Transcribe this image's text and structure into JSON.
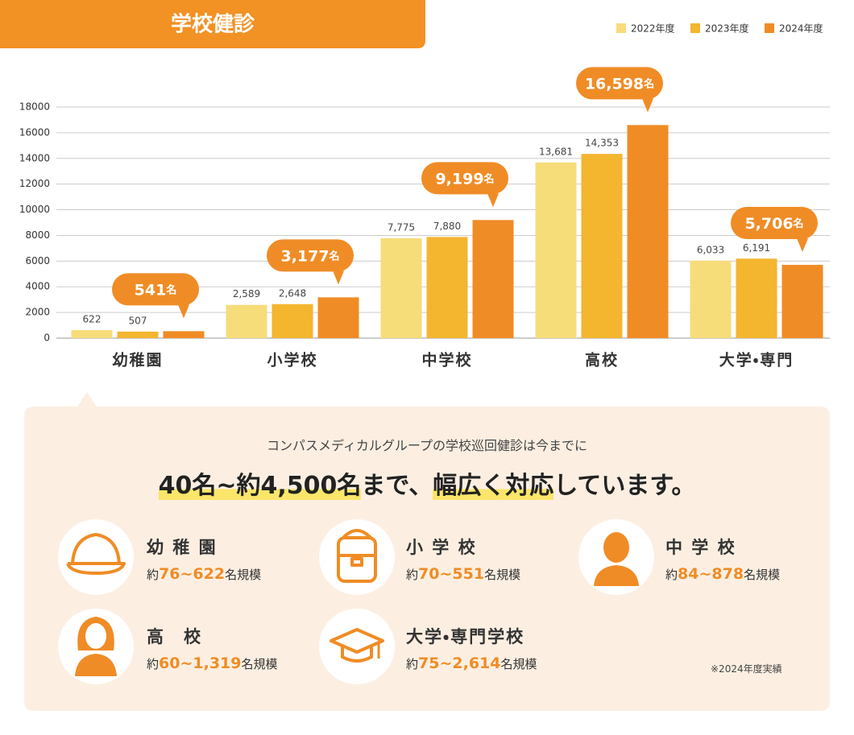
{
  "chart_data": {
    "type": "bar",
    "title": "学校健診",
    "categories": [
      "幼稚園",
      "小学校",
      "中学校",
      "高校",
      "大学・専門"
    ],
    "series": [
      {
        "name": "2022年度",
        "color": "#f7dc7a",
        "values": [
          622,
          2589,
          7775,
          13681,
          6033
        ],
        "value_labels": [
          "622",
          "2,589",
          "7,775",
          "13,681",
          "6,033"
        ]
      },
      {
        "name": "2023年度",
        "color": "#f4b52f",
        "values": [
          507,
          2648,
          7880,
          14353,
          6191
        ],
        "value_labels": [
          "507",
          "2,648",
          "7,880",
          "14,353",
          "6,191"
        ]
      },
      {
        "name": "2024年度",
        "color": "#f08c25",
        "values": [
          541,
          3177,
          9199,
          16598,
          5706
        ],
        "value_labels": [
          "541",
          "3,177",
          "9,199",
          "16,598",
          "5,706"
        ],
        "callout": true
      }
    ],
    "value_unit": "名",
    "ylim": [
      0,
      18000
    ],
    "yticks": [
      0,
      2000,
      4000,
      6000,
      8000,
      10000,
      12000,
      14000,
      16000,
      18000
    ],
    "grid": true,
    "legend": "top-right"
  },
  "info": {
    "lead": "コンパスメディカルグループの学校巡回健診は今までに",
    "headline": [
      {
        "text": "40名~約4,500名",
        "highlight": true
      },
      {
        "text": "まで、",
        "highlight": false
      },
      {
        "text": "幅広く対応",
        "highlight": true
      },
      {
        "text": "しています。",
        "highlight": false
      }
    ],
    "items": [
      {
        "name": "幼 稚 園",
        "pre": "約",
        "min": "76",
        "sep": "~",
        "max": "622",
        "post": "名規模"
      },
      {
        "name": "小 学 校",
        "pre": "約",
        "min": "70",
        "sep": "~",
        "max": "551",
        "post": "名規模"
      },
      {
        "name": "中 学 校",
        "pre": "約",
        "min": "84",
        "sep": "~",
        "max": "878",
        "post": "名規模"
      },
      {
        "name": "高　校",
        "pre": "約",
        "min": "60",
        "sep": "~",
        "max": "1,319",
        "post": "名規模"
      },
      {
        "name": "大学・専門学校",
        "pre": "約",
        "min": "75",
        "sep": "~",
        "max": "2,614",
        "post": "名規模"
      }
    ],
    "note": "※2024年度実績"
  }
}
